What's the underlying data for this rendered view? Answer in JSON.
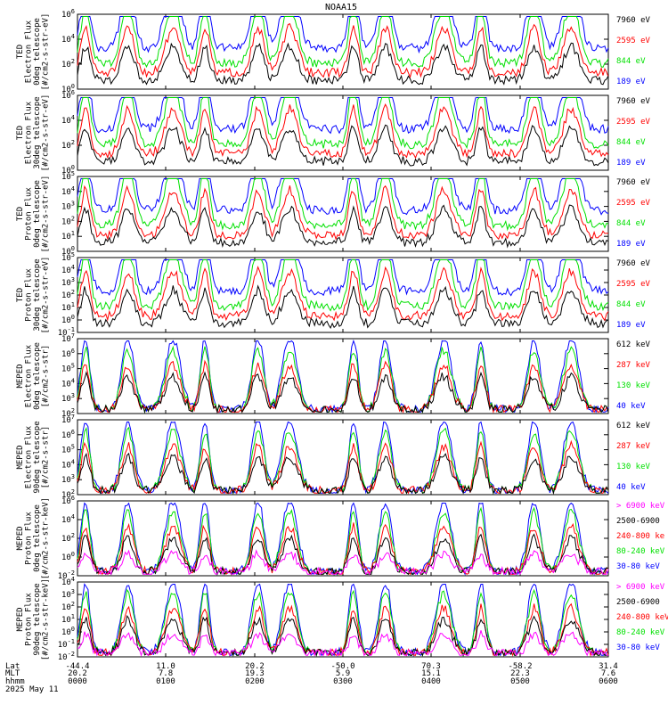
{
  "title": "NOAA15",
  "colors": {
    "blue": "#0000ff",
    "red": "#ff0000",
    "green": "#00e000",
    "black": "#000000",
    "magenta": "#ff00ff"
  },
  "footer": {
    "row_labels": [
      "Lat",
      "MLT",
      "hhmm",
      "2025 May 11"
    ],
    "ticks": [
      {
        "lat": "-44.4",
        "mlt": "20.2",
        "time": "0000"
      },
      {
        "lat": "11.0",
        "mlt": "7.8",
        "time": "0100"
      },
      {
        "lat": "20.2",
        "mlt": "19.3",
        "time": "0200"
      },
      {
        "lat": "-50.0",
        "mlt": "5.9",
        "time": "0300"
      },
      {
        "lat": "70.3",
        "mlt": "15.1",
        "time": "0400"
      },
      {
        "lat": "-58.2",
        "mlt": "22.3",
        "time": "0500"
      },
      {
        "lat": "31.4",
        "mlt": "7.6",
        "time": "0600"
      }
    ]
  },
  "chart_data": [
    {
      "type": "line",
      "ylabel": [
        "TED",
        "Electron Flux",
        "0deg telescope",
        "[#/cm2-s-str-eV]"
      ],
      "yscale": "log",
      "ylim_exp": [
        0,
        6
      ],
      "ytick_exp": [
        0,
        2,
        4,
        6
      ],
      "series": [
        {
          "name": "7960 eV",
          "color": "black"
        },
        {
          "name": "2595 eV",
          "color": "red"
        },
        {
          "name": "844 eV",
          "color": "green"
        },
        {
          "name": "189 eV",
          "color": "blue"
        }
      ]
    },
    {
      "type": "line",
      "ylabel": [
        "TED",
        "Electron Flux",
        "30deg telescope",
        "[#/cm2-s-str-eV]"
      ],
      "yscale": "log",
      "ylim_exp": [
        0,
        6
      ],
      "ytick_exp": [
        0,
        2,
        4,
        6
      ],
      "series": [
        {
          "name": "7960 eV",
          "color": "black"
        },
        {
          "name": "2595 eV",
          "color": "red"
        },
        {
          "name": "844 eV",
          "color": "green"
        },
        {
          "name": "189 eV",
          "color": "blue"
        }
      ]
    },
    {
      "type": "line",
      "ylabel": [
        "TED",
        "Proton Flux",
        "0deg telescope",
        "[#/cm2-s-str-eV]"
      ],
      "yscale": "log",
      "ylim_exp": [
        0,
        5
      ],
      "ytick_exp": [
        0,
        1,
        2,
        3,
        4,
        5
      ],
      "series": [
        {
          "name": "7960 eV",
          "color": "black"
        },
        {
          "name": "2595 eV",
          "color": "red"
        },
        {
          "name": "844 eV",
          "color": "green"
        },
        {
          "name": "189 eV",
          "color": "blue"
        }
      ]
    },
    {
      "type": "line",
      "ylabel": [
        "TED",
        "Proton Flux",
        "30deg telescope",
        "[#/cm2-s-str-eV]"
      ],
      "yscale": "log",
      "ylim_exp": [
        -1,
        5
      ],
      "ytick_exp": [
        -1,
        0,
        1,
        2,
        3,
        4,
        5
      ],
      "series": [
        {
          "name": "7960 eV",
          "color": "black"
        },
        {
          "name": "2595 eV",
          "color": "red"
        },
        {
          "name": "844 eV",
          "color": "green"
        },
        {
          "name": "189 eV",
          "color": "blue"
        }
      ]
    },
    {
      "type": "line",
      "ylabel": [
        "MEPED",
        "Electron Flux",
        "0deg telescope",
        "[#/cm2-s-str]"
      ],
      "yscale": "log",
      "ylim_exp": [
        2,
        7
      ],
      "ytick_exp": [
        2,
        3,
        4,
        5,
        6,
        7
      ],
      "series": [
        {
          "name": "612 keV",
          "color": "black"
        },
        {
          "name": "287 keV",
          "color": "red"
        },
        {
          "name": "130 keV",
          "color": "green"
        },
        {
          "name": "40 keV",
          "color": "blue"
        }
      ]
    },
    {
      "type": "line",
      "ylabel": [
        "MEPED",
        "Electron Flux",
        "90deg telescope",
        "[#/cm2-s-str]"
      ],
      "yscale": "log",
      "ylim_exp": [
        2,
        7
      ],
      "ytick_exp": [
        2,
        3,
        4,
        5,
        6,
        7
      ],
      "series": [
        {
          "name": "612 keV",
          "color": "black"
        },
        {
          "name": "287 keV",
          "color": "red"
        },
        {
          "name": "130 keV",
          "color": "green"
        },
        {
          "name": "40 keV",
          "color": "blue"
        }
      ]
    },
    {
      "type": "line",
      "ylabel": [
        "MEPED",
        "Proton Flux",
        "0deg telescope",
        "[#/cm2-s-str-keV]"
      ],
      "yscale": "log",
      "ylim_exp": [
        -2,
        6
      ],
      "ytick_exp": [
        -2,
        0,
        2,
        4,
        6
      ],
      "series": [
        {
          "name": "> 6900 keV",
          "color": "magenta"
        },
        {
          "name": "2500-6900",
          "color": "black"
        },
        {
          "name": "240-800 ke",
          "color": "red"
        },
        {
          "name": "80-240 keV",
          "color": "green"
        },
        {
          "name": "30-80 keV",
          "color": "blue"
        }
      ]
    },
    {
      "type": "line",
      "ylabel": [
        "MEPED",
        "Proton Flux",
        "90deg telescope",
        "[#/cm2-s-str-keV]"
      ],
      "yscale": "log",
      "ylim_exp": [
        -2,
        4
      ],
      "ytick_exp": [
        -2,
        -1,
        0,
        1,
        2,
        3,
        4
      ],
      "series": [
        {
          "name": "> 6900 keV",
          "color": "magenta"
        },
        {
          "name": "2500-6900",
          "color": "black"
        },
        {
          "name": "240-800 keV",
          "color": "red"
        },
        {
          "name": "80-240 keV",
          "color": "green"
        },
        {
          "name": "30-80 keV",
          "color": "blue"
        }
      ]
    }
  ]
}
